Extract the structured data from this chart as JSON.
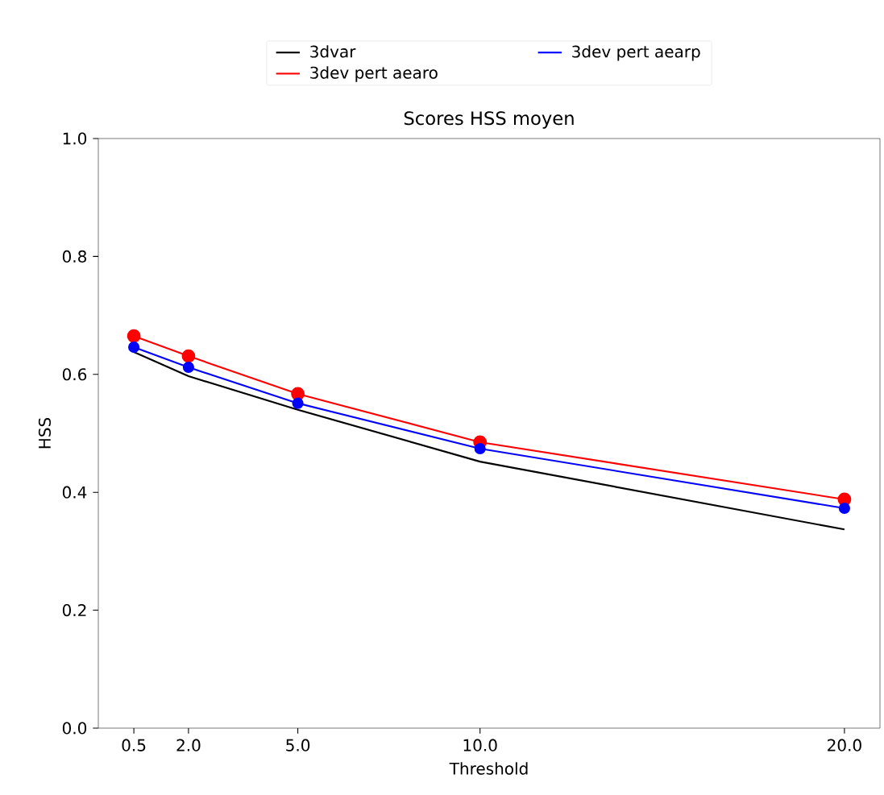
{
  "chart_data": {
    "type": "line",
    "title": "Scores HSS moyen",
    "xlabel": "Threshold",
    "ylabel": "HSS",
    "x": [
      0.5,
      2.0,
      5.0,
      10.0,
      20.0
    ],
    "series": [
      {
        "name": "3dvar",
        "color": "#000000",
        "marker": "none",
        "values": [
          0.638,
          0.597,
          0.54,
          0.452,
          0.337
        ]
      },
      {
        "name": "3dev pert aearo",
        "color": "#ff0000",
        "marker": "circle",
        "values": [
          0.665,
          0.631,
          0.567,
          0.485,
          0.388
        ]
      },
      {
        "name": "3dev pert aearp",
        "color": "#0000ff",
        "marker": "circle",
        "values": [
          0.646,
          0.612,
          0.551,
          0.474,
          0.373
        ]
      }
    ],
    "xlim": [
      -0.475,
      20.975
    ],
    "ylim": [
      0,
      1
    ],
    "xticks": [
      {
        "value": 0.5,
        "label": "0.5"
      },
      {
        "value": 2,
        "label": "2.0"
      },
      {
        "value": 5,
        "label": "5.0"
      },
      {
        "value": 10,
        "label": "10.0"
      },
      {
        "value": 20,
        "label": "20.0"
      }
    ],
    "yticks": [
      {
        "value": 0,
        "label": "0.0"
      },
      {
        "value": 0.2,
        "label": "0.2"
      },
      {
        "value": 0.4,
        "label": "0.4"
      },
      {
        "value": 0.6,
        "label": "0.6"
      },
      {
        "value": 0.8,
        "label": "0.8"
      },
      {
        "value": 1,
        "label": "1.0"
      }
    ],
    "grid": false,
    "legend": "top",
    "line_style": "solid"
  }
}
